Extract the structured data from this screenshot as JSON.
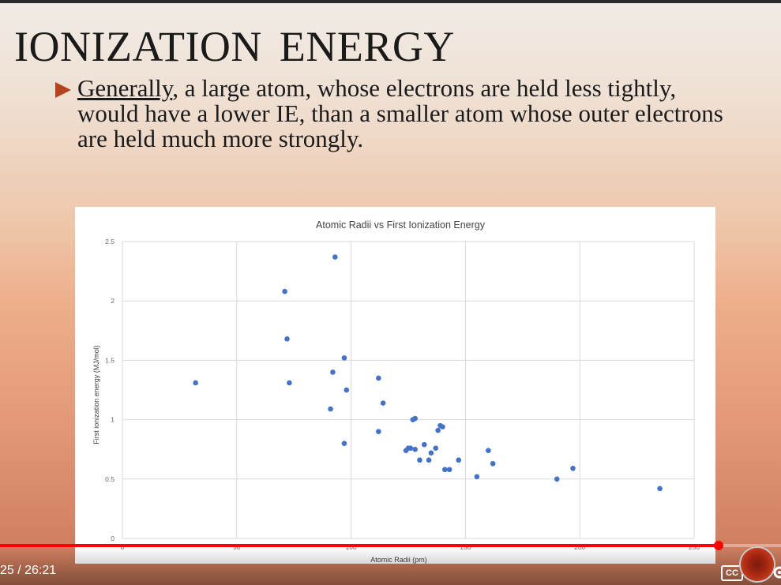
{
  "slide": {
    "title": "IONIZATION  ENERGY",
    "bullet": {
      "underlined": "Generally",
      "rest": ", a large atom, whose electrons are held less tightly, would have a lower IE, than a smaller atom whose outer electrons are held much more strongly."
    }
  },
  "chart_data": {
    "type": "scatter",
    "title": "Atomic Radii vs First Ionization Energy",
    "xlabel": "Atomic Radii (pm)",
    "ylabel": "First ionization energy (MJ/mol)",
    "xlim": [
      0,
      250
    ],
    "ylim": [
      0,
      2.5
    ],
    "xticks": [
      0,
      50,
      100,
      150,
      200,
      250
    ],
    "yticks": [
      0,
      0.5,
      1,
      1.5,
      2,
      2.5
    ],
    "grid": true,
    "marker_color": "#4472c4",
    "points": [
      [
        32,
        1.31
      ],
      [
        71,
        2.08
      ],
      [
        72,
        1.68
      ],
      [
        73,
        1.31
      ],
      [
        93,
        2.37
      ],
      [
        92,
        1.4
      ],
      [
        91,
        1.09
      ],
      [
        97,
        1.52
      ],
      [
        98,
        1.25
      ],
      [
        97,
        0.8
      ],
      [
        112,
        1.35
      ],
      [
        114,
        1.14
      ],
      [
        112,
        0.9
      ],
      [
        127,
        1.0
      ],
      [
        128,
        1.01
      ],
      [
        124,
        0.74
      ],
      [
        125,
        0.76
      ],
      [
        126,
        0.76
      ],
      [
        128,
        0.75
      ],
      [
        130,
        0.66
      ],
      [
        132,
        0.79
      ],
      [
        134,
        0.66
      ],
      [
        135,
        0.72
      ],
      [
        137,
        0.76
      ],
      [
        138,
        0.91
      ],
      [
        139,
        0.95
      ],
      [
        140,
        0.94
      ],
      [
        141,
        0.58
      ],
      [
        143,
        0.58
      ],
      [
        147,
        0.66
      ],
      [
        155,
        0.52
      ],
      [
        160,
        0.74
      ],
      [
        162,
        0.63
      ],
      [
        190,
        0.5
      ],
      [
        197,
        0.59
      ],
      [
        235,
        0.42
      ]
    ]
  },
  "player": {
    "time": "25 / 26:21",
    "progress": 0.92,
    "cc_label": "CC",
    "accent_color": "#ff0000"
  }
}
